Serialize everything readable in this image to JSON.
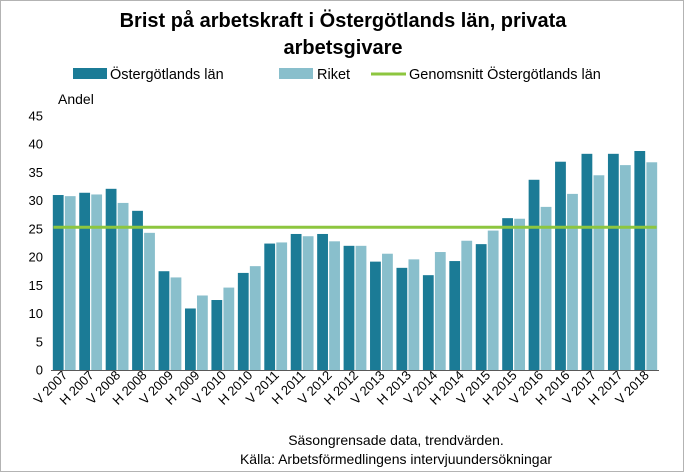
{
  "chart_data": {
    "type": "bar",
    "title_lines": [
      "Brist på arbetskraft i Östergötlands län, privata",
      "arbetsgivare"
    ],
    "ylabel": "Andel",
    "xlabel": "",
    "ylim": [
      0,
      45
    ],
    "yticks": [
      0,
      5,
      10,
      15,
      20,
      25,
      30,
      35,
      40,
      45
    ],
    "grid": false,
    "legend_position": "top",
    "categories": [
      "V 2007",
      "H 2007",
      "V 2008",
      "H 2008",
      "V 2009",
      "H 2009",
      "V 2010",
      "H 2010",
      "V 2011",
      "H 2011",
      "V 2012",
      "H 2012",
      "V 2013",
      "H 2013",
      "V 2014",
      "H 2014",
      "V 2015",
      "H 2015",
      "V 2016",
      "H 2016",
      "V 2017",
      "H 2017",
      "V 2018"
    ],
    "series": [
      {
        "name": "Östergötlands län",
        "color": "#1b7b96",
        "values": [
          31,
          31.4,
          32.1,
          28.2,
          17.5,
          10.9,
          12.4,
          17.2,
          22.4,
          24.1,
          24.1,
          22,
          19.2,
          18.1,
          16.8,
          19.3,
          22.3,
          26.9,
          33.7,
          36.9,
          38.3,
          38.3,
          38.8
        ]
      },
      {
        "name": "Riket",
        "color": "#89bfcc",
        "values": [
          30.8,
          31.1,
          29.6,
          24.3,
          16.4,
          13.2,
          14.6,
          18.4,
          22.6,
          23.7,
          22.8,
          22,
          20.6,
          19.6,
          20.9,
          22.9,
          24.7,
          26.8,
          28.9,
          31.2,
          34.5,
          36.3,
          36.8
        ]
      }
    ],
    "reference_line": {
      "name": "Genomsnitt Östergötlands län",
      "color": "#8dc63f",
      "value": 25.3
    },
    "caption_lines": [
      "Säsongrensade data, trendvärden.",
      "Källa: Arbetsförmedlingens intervjuundersökningar"
    ]
  }
}
